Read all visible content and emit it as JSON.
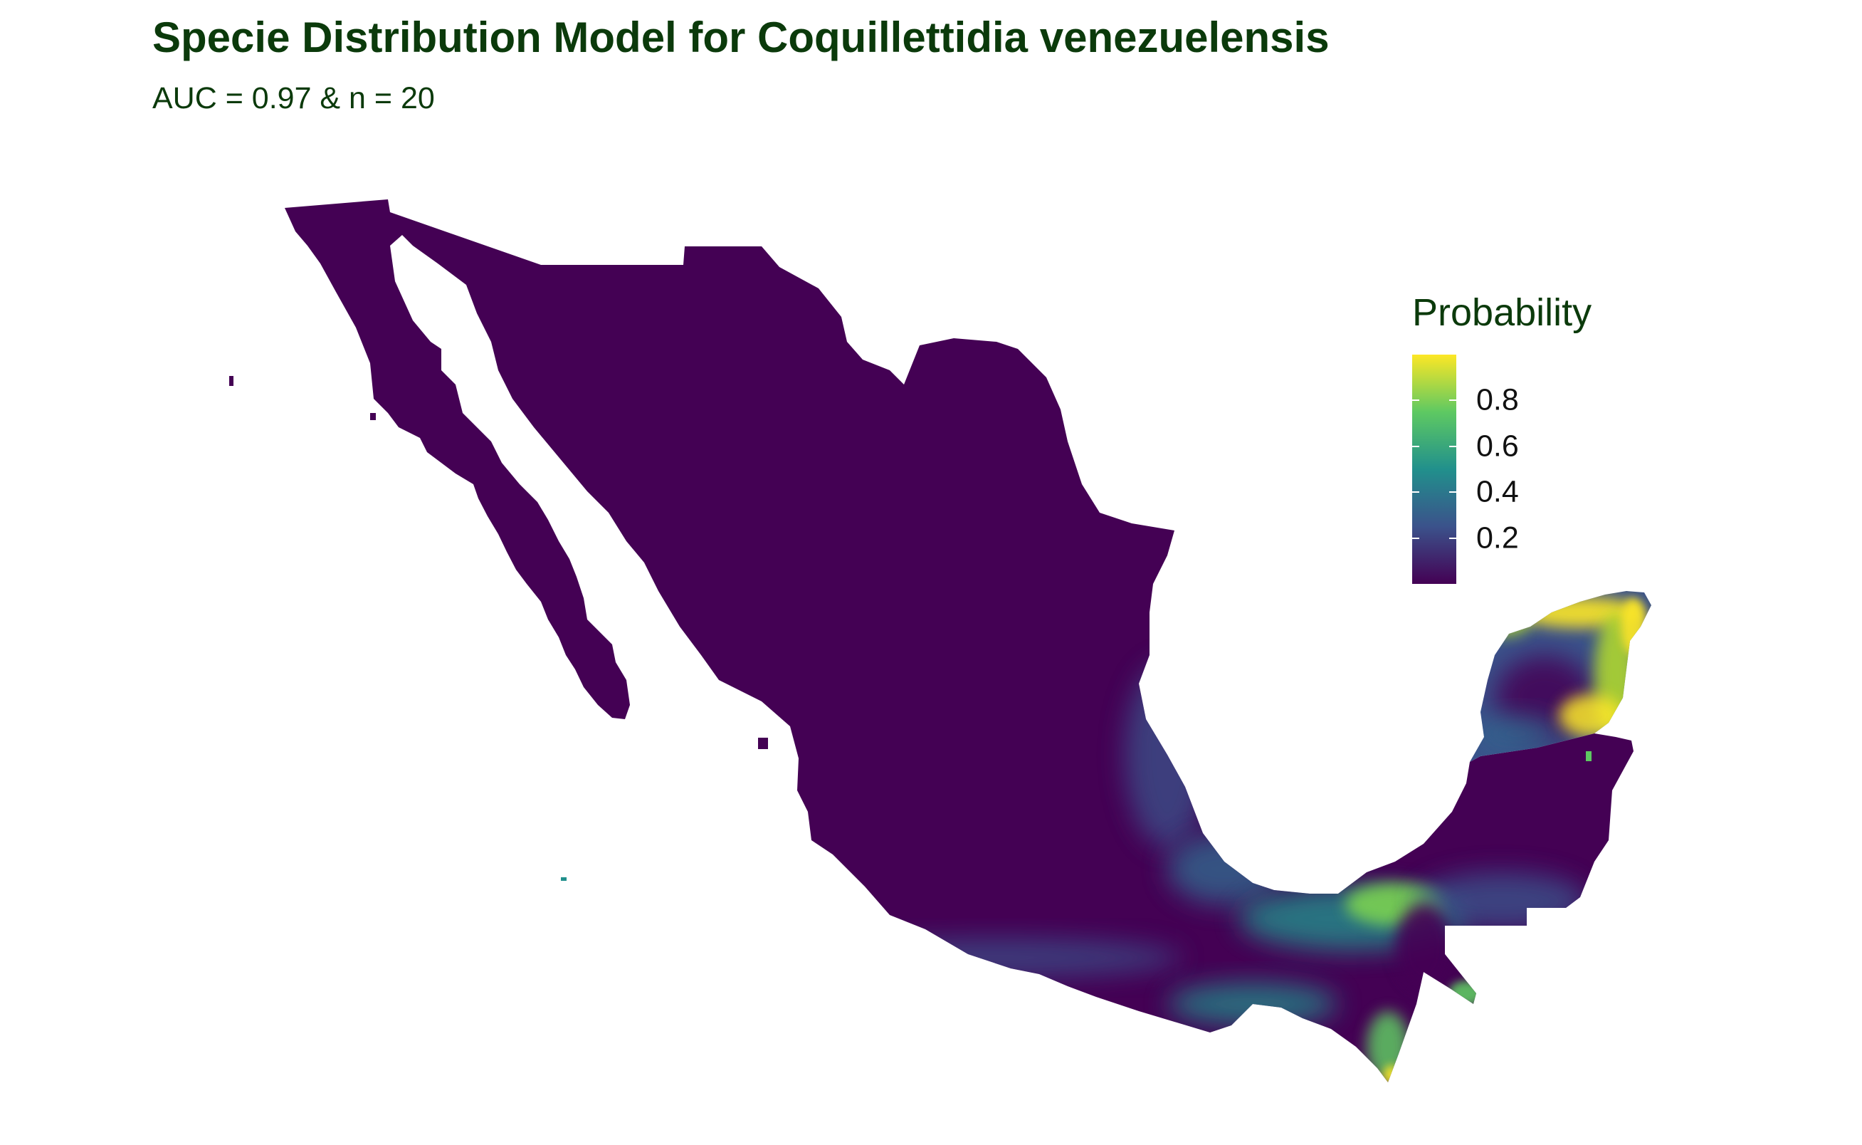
{
  "title": "Specie Distribution Model for Coquillettidia venezuelensis",
  "subtitle": "AUC = 0.97 & n = 20",
  "legend": {
    "title": "Probability",
    "min": 0.0,
    "max": 1.0,
    "ticks": [
      {
        "value": 0.8,
        "label": "0.8"
      },
      {
        "value": 0.6,
        "label": "0.6"
      },
      {
        "value": 0.4,
        "label": "0.4"
      },
      {
        "value": 0.2,
        "label": "0.2"
      }
    ],
    "gradient": [
      "#440154",
      "#3b528b",
      "#21908c",
      "#5ec962",
      "#fde725"
    ]
  },
  "colors": {
    "low": "#440154",
    "mid_low": "#3b528b",
    "mid": "#21908c",
    "mid_high": "#5ec962",
    "high": "#fde725",
    "title_text": "#0b3a0b"
  }
}
